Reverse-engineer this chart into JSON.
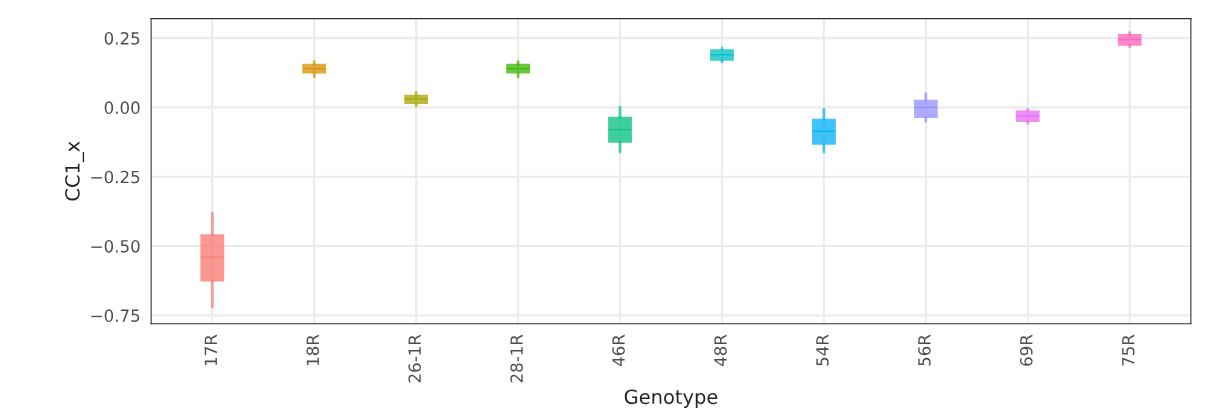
{
  "chart_data": {
    "type": "box",
    "xlabel": "Genotype",
    "ylabel": "CC1_x",
    "categories": [
      "17R",
      "18R",
      "26-1R",
      "28-1R",
      "46R",
      "48R",
      "54R",
      "56R",
      "69R",
      "75R"
    ],
    "colors": [
      "#f8766d",
      "#d89000",
      "#a3a500",
      "#39b600",
      "#00bf7d",
      "#00bfc4",
      "#00b0f6",
      "#9590ff",
      "#e76bf3",
      "#ff62bc"
    ],
    "boxes": [
      {
        "low": -0.72,
        "q1": -0.625,
        "median": -0.54,
        "q3": -0.46,
        "high": -0.38
      },
      {
        "low": 0.11,
        "q1": 0.125,
        "median": 0.14,
        "q3": 0.155,
        "high": 0.165
      },
      {
        "low": 0.005,
        "q1": 0.015,
        "median": 0.03,
        "q3": 0.043,
        "high": 0.054
      },
      {
        "low": 0.11,
        "q1": 0.125,
        "median": 0.14,
        "q3": 0.155,
        "high": 0.165
      },
      {
        "low": -0.16,
        "q1": -0.125,
        "median": -0.08,
        "q3": -0.036,
        "high": 0.0
      },
      {
        "low": 0.164,
        "q1": 0.171,
        "median": 0.19,
        "q3": 0.207,
        "high": 0.214
      },
      {
        "low": -0.16,
        "q1": -0.132,
        "median": -0.086,
        "q3": -0.043,
        "high": -0.007
      },
      {
        "low": -0.05,
        "q1": -0.036,
        "median": 0.0,
        "q3": 0.025,
        "high": 0.05
      },
      {
        "low": -0.058,
        "q1": -0.05,
        "median": -0.03,
        "q3": -0.014,
        "high": -0.007
      },
      {
        "low": 0.218,
        "q1": 0.225,
        "median": 0.245,
        "q3": 0.262,
        "high": 0.27
      }
    ],
    "ylim": [
      -0.78,
      0.32
    ],
    "yticks": [
      {
        "value": -0.75,
        "label": "−0.75"
      },
      {
        "value": -0.5,
        "label": "−0.50"
      },
      {
        "value": -0.25,
        "label": "−0.25"
      },
      {
        "value": 0,
        "label": "0.00"
      },
      0.25
    ],
    "grid": true
  }
}
